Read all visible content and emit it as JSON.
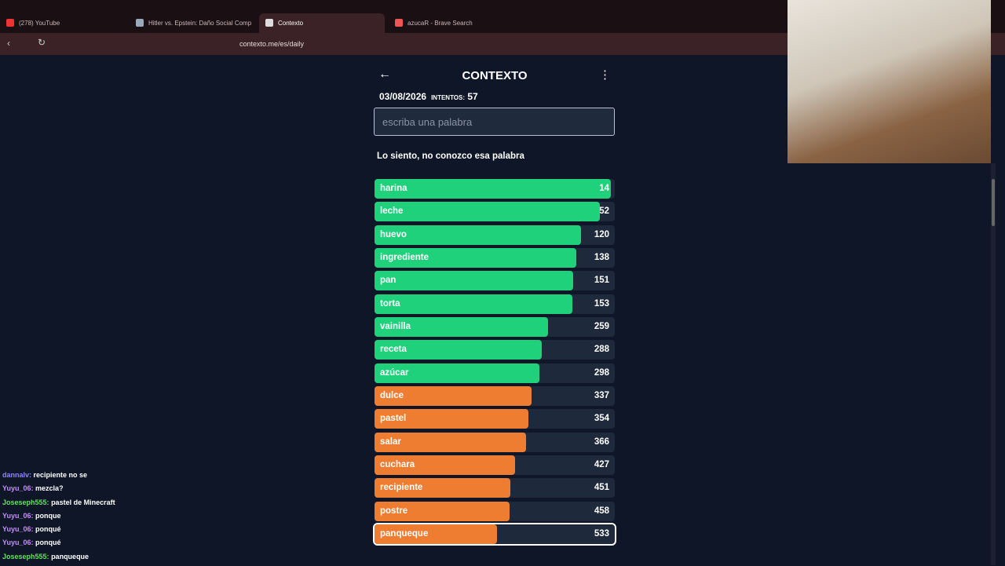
{
  "browser": {
    "tabs": [
      "(278) YouTube",
      "Hitler vs. Epstein: Daño Social Comp",
      "Contexto",
      "azucaR - Brave Search"
    ],
    "url": "contexto.me/es/daily"
  },
  "game": {
    "title": "CONTEXTO",
    "date": "03/08/2026",
    "attempts_label": "INTENTOS:",
    "attempts": "57",
    "placeholder": "escriba una palabra",
    "message": "Lo siento, no conozco esa palabra",
    "rows": [
      {
        "word": "harina",
        "rank": "14"
      },
      {
        "word": "leche",
        "rank": "52"
      },
      {
        "word": "huevo",
        "rank": "120"
      },
      {
        "word": "ingrediente",
        "rank": "138"
      },
      {
        "word": "pan",
        "rank": "151"
      },
      {
        "word": "torta",
        "rank": "153"
      },
      {
        "word": "vainilla",
        "rank": "259"
      },
      {
        "word": "receta",
        "rank": "288"
      },
      {
        "word": "azúcar",
        "rank": "298"
      },
      {
        "word": "dulce",
        "rank": "337"
      },
      {
        "word": "pastel",
        "rank": "354"
      },
      {
        "word": "salar",
        "rank": "366"
      },
      {
        "word": "cuchara",
        "rank": "427"
      },
      {
        "word": "recipiente",
        "rank": "451"
      },
      {
        "word": "postre",
        "rank": "458"
      },
      {
        "word": "panqueque",
        "rank": "533"
      }
    ]
  },
  "chat": {
    "messages": [
      {
        "user": "dannalv:",
        "text": "recipiente no se"
      },
      {
        "user": "Yuyu_06:",
        "text": "mezcla?"
      },
      {
        "user": "Joseseph555:",
        "text": "pastel de Minecraft"
      },
      {
        "user": "Yuyu_06:",
        "text": "ponque"
      },
      {
        "user": "Yuyu_06:",
        "text": "ponqué"
      },
      {
        "user": "Yuyu_06:",
        "text": "ponqué"
      },
      {
        "user": "Joseseph555:",
        "text": "panqueque"
      }
    ]
  }
}
